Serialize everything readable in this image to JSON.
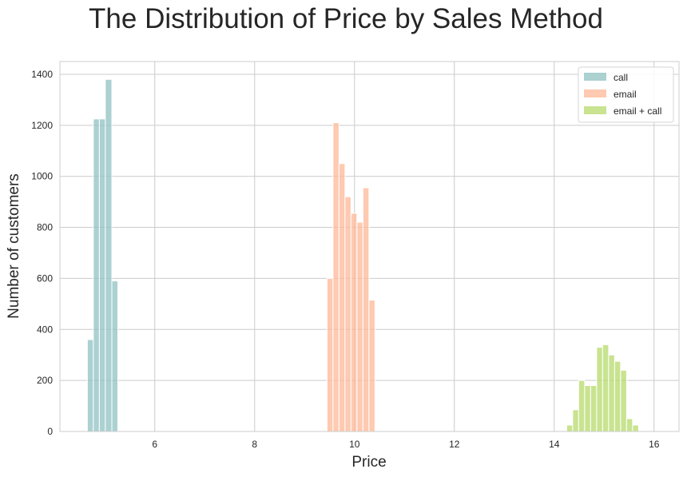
{
  "chart_data": {
    "type": "bar",
    "title": "The Distribution of Price by Sales Method",
    "xlabel": "Price",
    "ylabel": "Number of customers",
    "xlim": [
      4.1,
      16.5
    ],
    "ylim": [
      0,
      1450
    ],
    "x_ticks": [
      6,
      8,
      10,
      12,
      14,
      16
    ],
    "y_ticks": [
      0,
      200,
      400,
      600,
      800,
      1000,
      1200,
      1400
    ],
    "grid": true,
    "legend_position": "top-right",
    "series": [
      {
        "name": "call",
        "color": "#8fc1c1",
        "bins": [
          {
            "x0": 4.65,
            "x1": 4.77,
            "value": 360
          },
          {
            "x0": 4.77,
            "x1": 4.89,
            "value": 1225
          },
          {
            "x0": 4.89,
            "x1": 5.01,
            "value": 1225
          },
          {
            "x0": 5.01,
            "x1": 5.14,
            "value": 1380
          },
          {
            "x0": 5.14,
            "x1": 5.26,
            "value": 590
          }
        ]
      },
      {
        "name": "email",
        "color": "#fdb897",
        "bins": [
          {
            "x0": 9.45,
            "x1": 9.57,
            "value": 600
          },
          {
            "x0": 9.57,
            "x1": 9.69,
            "value": 1210
          },
          {
            "x0": 9.69,
            "x1": 9.81,
            "value": 1050
          },
          {
            "x0": 9.81,
            "x1": 9.93,
            "value": 920
          },
          {
            "x0": 9.93,
            "x1": 10.05,
            "value": 855
          },
          {
            "x0": 10.05,
            "x1": 10.17,
            "value": 820
          },
          {
            "x0": 10.17,
            "x1": 10.29,
            "value": 955
          },
          {
            "x0": 10.29,
            "x1": 10.41,
            "value": 515
          }
        ]
      },
      {
        "name": "email + call",
        "color": "#b7d96b",
        "bins": [
          {
            "x0": 14.25,
            "x1": 14.37,
            "value": 25
          },
          {
            "x0": 14.37,
            "x1": 14.49,
            "value": 85
          },
          {
            "x0": 14.49,
            "x1": 14.61,
            "value": 200
          },
          {
            "x0": 14.61,
            "x1": 14.73,
            "value": 180
          },
          {
            "x0": 14.73,
            "x1": 14.85,
            "value": 180
          },
          {
            "x0": 14.85,
            "x1": 14.97,
            "value": 330
          },
          {
            "x0": 14.97,
            "x1": 15.09,
            "value": 340
          },
          {
            "x0": 15.09,
            "x1": 15.21,
            "value": 300
          },
          {
            "x0": 15.21,
            "x1": 15.33,
            "value": 275
          },
          {
            "x0": 15.33,
            "x1": 15.45,
            "value": 240
          },
          {
            "x0": 15.45,
            "x1": 15.57,
            "value": 50
          },
          {
            "x0": 15.57,
            "x1": 15.69,
            "value": 25
          }
        ]
      }
    ]
  }
}
